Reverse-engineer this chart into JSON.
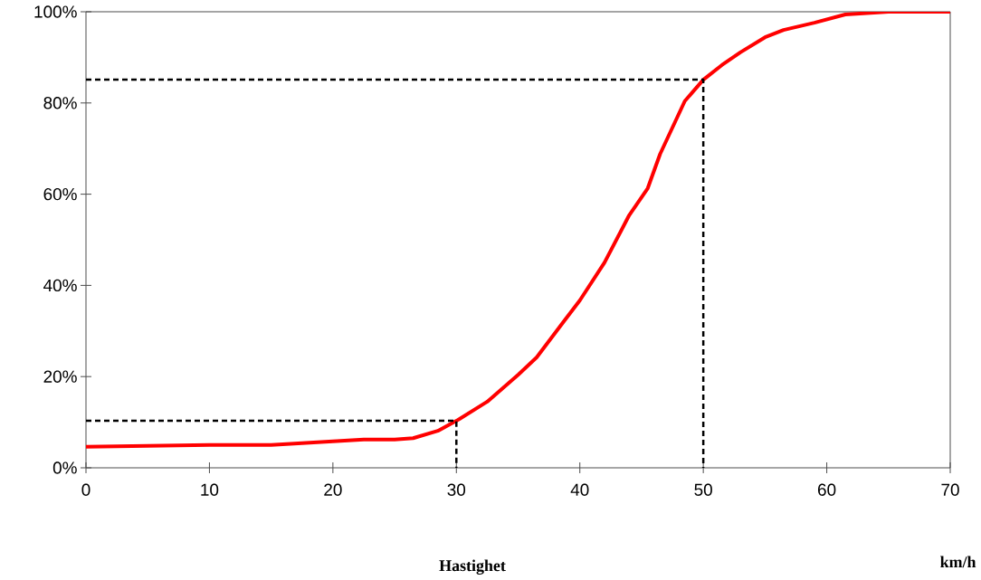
{
  "chart_data": {
    "type": "line",
    "xlabel": "Hastighet",
    "annotations": [
      "km/h"
    ],
    "xlim": [
      0,
      70
    ],
    "xticks": [
      0,
      10,
      20,
      30,
      40,
      50,
      60,
      70
    ],
    "ylim": [
      0,
      100
    ],
    "yticks": [
      {
        "value": 0,
        "label": "0%"
      },
      {
        "value": 20,
        "label": "20%"
      },
      {
        "value": 40,
        "label": "40%"
      },
      {
        "value": 60,
        "label": "60%"
      },
      {
        "value": 80,
        "label": "80%"
      },
      {
        "value": 100,
        "label": "100%"
      }
    ],
    "grid": false,
    "marker": "none",
    "series": [
      {
        "color": "#ff0000",
        "line_style": "solid",
        "x": [
          0,
          10,
          15,
          20,
          22.5,
          25,
          26.5,
          28.5,
          30,
          32.5,
          35,
          36.5,
          38.7,
          40,
          42,
          44,
          45.5,
          46.5,
          48.5,
          50,
          51.5,
          53,
          55,
          56.5,
          59,
          61.5,
          65,
          70
        ],
        "values": [
          4.6,
          5.0,
          5.0,
          5.8,
          6.2,
          6.2,
          6.5,
          8.1,
          10.3,
          14.5,
          20.4,
          24.2,
          32.1,
          36.7,
          45,
          55.4,
          61.3,
          68.8,
          80.4,
          85.1,
          88.3,
          91.1,
          94.4,
          96,
          97.6,
          99.4,
          100,
          100
        ]
      },
      {
        "color": "#000000",
        "line_style": "dashed",
        "x": [
          0,
          30,
          30
        ],
        "values": [
          10.3,
          10.3,
          0
        ]
      },
      {
        "color": "#000000",
        "line_style": "dashed",
        "x": [
          0,
          50,
          50
        ],
        "values": [
          85.1,
          85.1,
          0
        ]
      }
    ]
  }
}
